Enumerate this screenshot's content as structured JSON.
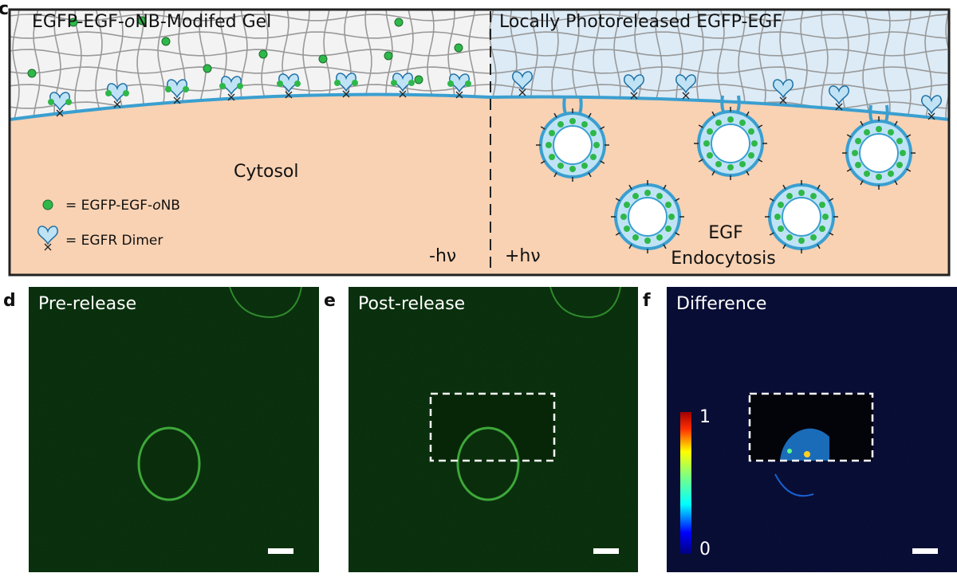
{
  "panel_c": {
    "label": "c",
    "gel_label": {
      "before": "EGFP-EGF-",
      "italic": "o",
      "after": "NB-Modifed Gel"
    },
    "released_label": "Locally Photoreleased EGFP-EGF",
    "cytosol": "Cytosol",
    "legend_egf": {
      "before": "= EGFP-EGF-",
      "italic": "o",
      "after": "NB"
    },
    "legend_egfr": "= EGFR Dimer",
    "minus_light": "-hν",
    "plus_light": "+hν",
    "endocytosis": [
      "EGF",
      "Endocytosis"
    ]
  },
  "panel_d": {
    "label": "d",
    "title": "Pre-release"
  },
  "panel_e": {
    "label": "e",
    "title": "Post-release"
  },
  "panel_f": {
    "label": "f",
    "title": "Difference",
    "colorbar": {
      "max": 1,
      "min": 0
    }
  }
}
